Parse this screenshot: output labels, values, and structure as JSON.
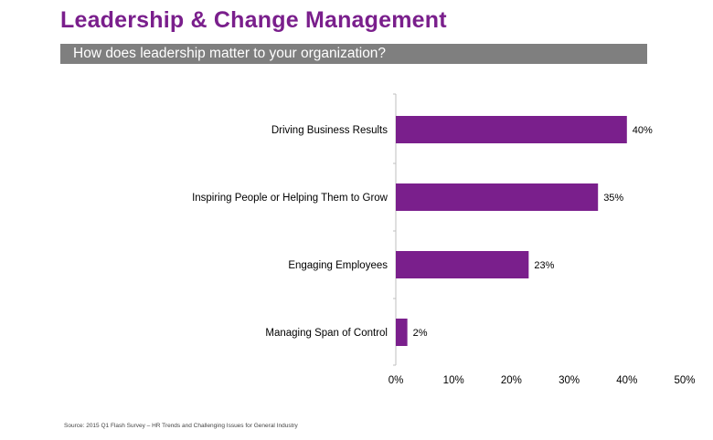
{
  "header": {
    "title": "Leadership & Change Management",
    "subtitle": "How does leadership matter to your organization?"
  },
  "footer": {
    "source": "Source: 2015 Q1 Flash Survey – HR Trends and Challenging Issues for General Industry"
  },
  "colors": {
    "title": "#7a1f8c",
    "bar": "#7a1f8c",
    "subtitle_bg": "#7f7f7f"
  },
  "chart_data": {
    "type": "bar",
    "orientation": "horizontal",
    "title": "How does leadership matter to your organization?",
    "categories": [
      "Driving Business Results",
      "Inspiring People or Helping Them to Grow",
      "Engaging Employees",
      "Managing Span of Control"
    ],
    "values": [
      40,
      35,
      23,
      2
    ],
    "value_labels": [
      "40%",
      "35%",
      "23%",
      "2%"
    ],
    "xlim": [
      0,
      50
    ],
    "x_ticks": [
      0,
      10,
      20,
      30,
      40,
      50
    ],
    "x_tick_labels": [
      "0%",
      "10%",
      "20%",
      "30%",
      "40%",
      "50%"
    ],
    "xlabel": "",
    "ylabel": "",
    "grid": false,
    "legend": "none"
  }
}
